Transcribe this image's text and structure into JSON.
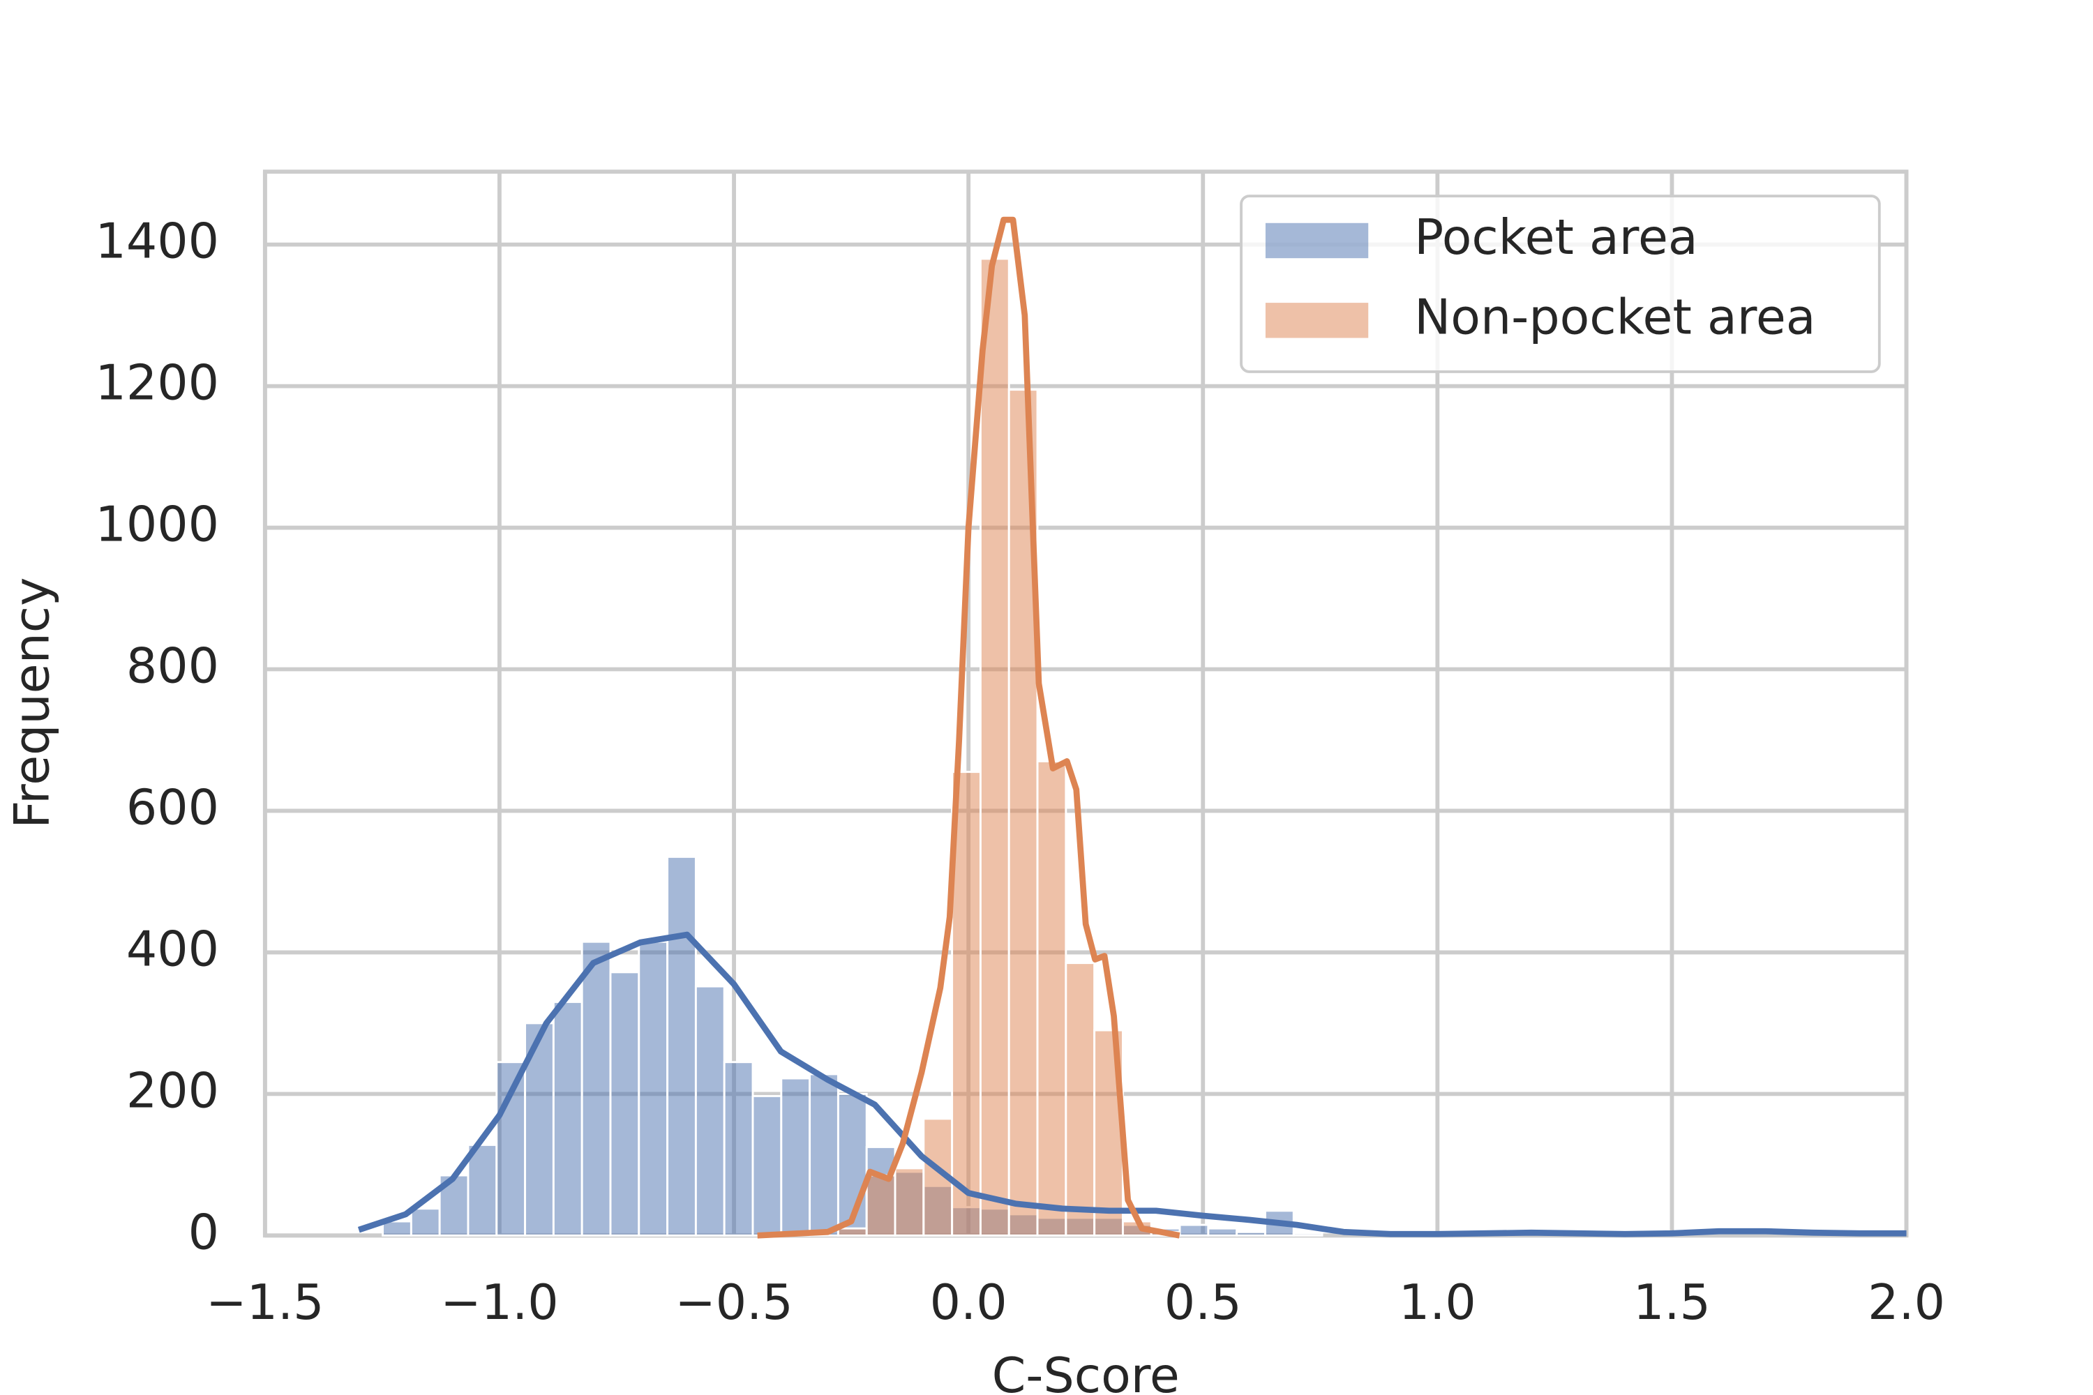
{
  "chart_data": {
    "type": "histogram",
    "x_label": "C-Score",
    "y_label": "Frequency",
    "bins": [
      -1.249,
      -1.1883,
      -1.1276,
      -1.0669,
      -1.0062,
      -0.9455,
      -0.8848,
      -0.8241,
      -0.7634,
      -0.7027,
      -0.642,
      -0.5813,
      -0.5206,
      -0.4599,
      -0.3992,
      -0.3385,
      -0.2778,
      -0.2171,
      -0.1564,
      -0.0957,
      -0.035,
      0.0257,
      0.0864,
      0.1471,
      0.2078,
      0.2685,
      0.3292,
      0.3899,
      0.4506,
      0.5113,
      0.572,
      0.6327,
      0.6934,
      0.7541,
      0.8148
    ],
    "series": [
      {
        "name": "Pocket area",
        "color": "#4c72b0",
        "values": [
          20,
          38,
          85,
          128,
          245,
          300,
          330,
          415,
          372,
          415,
          535,
          352,
          245,
          197,
          222,
          228,
          200,
          125,
          90,
          70,
          40,
          38,
          30,
          25,
          25,
          25,
          15,
          10,
          15,
          10,
          5,
          35,
          3,
          0
        ],
        "kde_x": [
          -1.3,
          -1.2,
          -1.1,
          -1.0,
          -0.9,
          -0.8,
          -0.7,
          -0.6,
          -0.5,
          -0.4,
          -0.3,
          -0.2,
          -0.1,
          0.0,
          0.1,
          0.2,
          0.3,
          0.4,
          0.5,
          0.6,
          0.7,
          0.8,
          0.9,
          1.0,
          1.1,
          1.2,
          1.3,
          1.4,
          1.5,
          1.6,
          1.7,
          1.8,
          1.9,
          2.0
        ],
        "kde": [
          8,
          30,
          80,
          170,
          300,
          385,
          414,
          425,
          355,
          260,
          220,
          185,
          112,
          60,
          45,
          38,
          35,
          35,
          28,
          22,
          15,
          5,
          2,
          2,
          3,
          4,
          3,
          2,
          3,
          6,
          6,
          4,
          3,
          3
        ]
      },
      {
        "name": "Non-pocket area",
        "color": "#dd8452",
        "values": [
          0,
          0,
          0,
          0,
          0,
          0,
          0,
          0,
          0,
          0,
          0,
          0,
          0,
          0,
          0,
          0,
          10,
          85,
          95,
          165,
          655,
          1380,
          1195,
          670,
          385,
          290,
          20,
          5,
          0,
          0,
          0,
          0,
          0,
          0
        ],
        "kde_x": [
          -0.45,
          -0.3,
          -0.25,
          -0.21,
          -0.17,
          -0.14,
          -0.1,
          -0.06,
          -0.04,
          -0.02,
          0.0,
          0.03,
          0.05,
          0.075,
          0.095,
          0.12,
          0.15,
          0.18,
          0.21,
          0.23,
          0.25,
          0.27,
          0.29,
          0.31,
          0.34,
          0.37,
          0.45
        ],
        "kde": [
          0,
          5,
          20,
          90,
          80,
          130,
          230,
          350,
          450,
          700,
          1000,
          1250,
          1370,
          1435,
          1435,
          1300,
          780,
          660,
          670,
          630,
          440,
          390,
          395,
          310,
          50,
          10,
          0
        ]
      }
    ],
    "xlim": [
      -1.5,
      2.0
    ],
    "ylim": [
      0,
      1503
    ],
    "xticks": [
      {
        "value": -1.5,
        "label": "−1.5"
      },
      {
        "value": -1.0,
        "label": "−1.0"
      },
      {
        "value": -0.5,
        "label": "−0.5"
      },
      {
        "value": 0.0,
        "label": "0.0"
      },
      0.5,
      {
        "value": 1.0,
        "label": "1.0"
      },
      1.5,
      {
        "value": 2.0,
        "label": "2.0"
      }
    ],
    "yticks": [
      0,
      200,
      400,
      600,
      800,
      1000,
      1200,
      1400
    ],
    "grid": true,
    "legend": "upper right",
    "bar_opacity": 0.5
  }
}
